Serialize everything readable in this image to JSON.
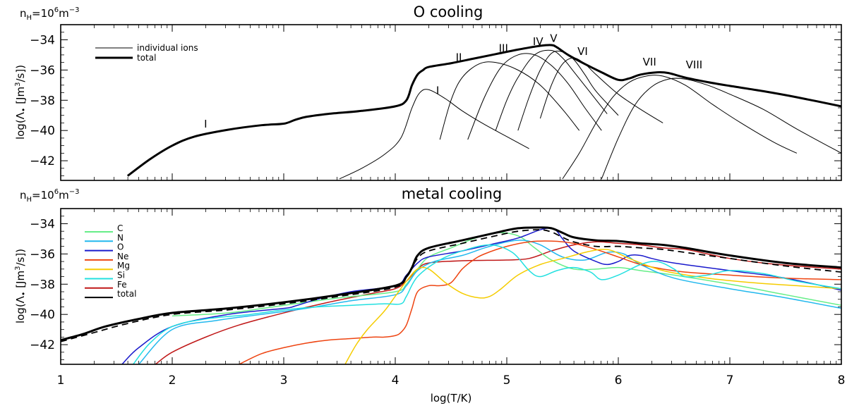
{
  "chart_data": [
    {
      "type": "line",
      "title": "O cooling",
      "density_base": "n",
      "density_sub": "H",
      "density_eq": "=10",
      "density_exp": "6",
      "density_unit": "m",
      "density_unit_exp": "−3",
      "ylabel": {
        "pre": "log(Λ",
        "bullet": "•",
        "mid": " [Jm",
        "exp": "3",
        "post": "/s])"
      },
      "xlim": [
        1,
        8
      ],
      "ylim": [
        -43.3,
        -33.0
      ],
      "yticks": [
        "-34",
        "-36",
        "-38",
        "-40",
        "-42"
      ],
      "legend": [
        {
          "label": "individual ions",
          "weight": "thin"
        },
        {
          "label": "total",
          "weight": "thick"
        }
      ],
      "ion_labels": [
        {
          "text": "I",
          "x": 2.3,
          "y": -39.8
        },
        {
          "text": "I",
          "x": 4.38,
          "y": -37.6
        },
        {
          "text": "II",
          "x": 4.57,
          "y": -35.4
        },
        {
          "text": "III",
          "x": 4.97,
          "y": -34.8
        },
        {
          "text": "IV",
          "x": 5.28,
          "y": -34.35
        },
        {
          "text": "V",
          "x": 5.42,
          "y": -34.15
        },
        {
          "text": "VI",
          "x": 5.68,
          "y": -35.0
        },
        {
          "text": "VII",
          "x": 6.28,
          "y": -35.7
        },
        {
          "text": "VIII",
          "x": 6.68,
          "y": -35.9
        }
      ],
      "series": [
        {
          "name": "total",
          "color": "#000000",
          "width": 3,
          "x": [
            1.6,
            1.8,
            2.0,
            2.2,
            2.5,
            2.8,
            3.0,
            3.1,
            3.2,
            3.4,
            3.7,
            4.0,
            4.1,
            4.15,
            4.2,
            4.25,
            4.3,
            4.5,
            4.7,
            4.9,
            5.1,
            5.3,
            5.4,
            5.45,
            5.55,
            5.7,
            5.85,
            6.0,
            6.1,
            6.2,
            6.35,
            6.45,
            6.6,
            6.8,
            7.0,
            7.3,
            7.6,
            8.0
          ],
          "y": [
            -43.0,
            -41.9,
            -41.0,
            -40.4,
            -39.95,
            -39.65,
            -39.55,
            -39.3,
            -39.1,
            -38.9,
            -38.7,
            -38.4,
            -38.0,
            -37.0,
            -36.3,
            -36.0,
            -35.8,
            -35.55,
            -35.25,
            -34.95,
            -34.65,
            -34.4,
            -34.35,
            -34.5,
            -35.0,
            -35.6,
            -36.15,
            -36.65,
            -36.55,
            -36.3,
            -36.15,
            -36.2,
            -36.5,
            -36.8,
            -37.05,
            -37.4,
            -37.8,
            -38.4
          ]
        },
        {
          "name": "O I",
          "color": "#000000",
          "width": 1,
          "x": [
            3.5,
            3.7,
            3.9,
            4.05,
            4.15,
            4.22,
            4.3,
            4.45,
            4.6,
            4.8,
            5.0,
            5.2
          ],
          "y": [
            -43.2,
            -42.5,
            -41.6,
            -40.5,
            -38.5,
            -37.5,
            -37.3,
            -37.9,
            -38.7,
            -39.6,
            -40.4,
            -41.2
          ]
        },
        {
          "name": "O II",
          "color": "#000000",
          "width": 1,
          "x": [
            4.4,
            4.5,
            4.6,
            4.75,
            4.9,
            5.1,
            5.3,
            5.5,
            5.65
          ],
          "y": [
            -40.6,
            -38.0,
            -36.5,
            -35.6,
            -35.5,
            -36.0,
            -37.0,
            -38.6,
            -40.0
          ]
        },
        {
          "name": "O III",
          "color": "#000000",
          "width": 1,
          "x": [
            4.65,
            4.8,
            4.95,
            5.1,
            5.25,
            5.4,
            5.55,
            5.7,
            5.85
          ],
          "y": [
            -40.6,
            -37.8,
            -35.8,
            -35.0,
            -35.0,
            -35.7,
            -36.9,
            -38.5,
            -40.0
          ]
        },
        {
          "name": "O IV",
          "color": "#000000",
          "width": 1,
          "x": [
            4.9,
            5.0,
            5.1,
            5.25,
            5.4,
            5.5,
            5.6,
            5.75,
            5.9
          ],
          "y": [
            -40.0,
            -38.0,
            -36.5,
            -35.0,
            -34.7,
            -35.2,
            -36.1,
            -37.5,
            -38.9
          ]
        },
        {
          "name": "O V",
          "color": "#000000",
          "width": 1,
          "x": [
            5.1,
            5.2,
            5.3,
            5.4,
            5.5,
            5.6,
            5.7,
            5.8,
            6.0
          ],
          "y": [
            -40.0,
            -37.8,
            -36.0,
            -34.9,
            -34.8,
            -35.3,
            -36.3,
            -37.4,
            -39.0
          ]
        },
        {
          "name": "O VI",
          "color": "#000000",
          "width": 1,
          "x": [
            5.3,
            5.4,
            5.5,
            5.6,
            5.7,
            5.8,
            6.0,
            6.2,
            6.4
          ],
          "y": [
            -39.2,
            -37.0,
            -35.6,
            -35.2,
            -35.6,
            -36.3,
            -37.6,
            -38.6,
            -39.5
          ]
        },
        {
          "name": "O VII",
          "color": "#000000",
          "width": 1,
          "x": [
            5.5,
            5.65,
            5.8,
            5.95,
            6.1,
            6.25,
            6.4,
            6.6,
            6.85,
            7.1,
            7.4,
            7.6
          ],
          "y": [
            -43.2,
            -41.5,
            -39.5,
            -37.8,
            -36.8,
            -36.4,
            -36.4,
            -37.0,
            -38.3,
            -39.5,
            -40.8,
            -41.5
          ]
        },
        {
          "name": "O VIII",
          "color": "#000000",
          "width": 1,
          "x": [
            5.85,
            6.0,
            6.15,
            6.3,
            6.45,
            6.6,
            6.8,
            7.0,
            7.3,
            7.6,
            8.0
          ],
          "y": [
            -43.2,
            -40.5,
            -38.3,
            -37.1,
            -36.6,
            -36.6,
            -37.0,
            -37.6,
            -38.6,
            -39.9,
            -41.5
          ]
        }
      ]
    },
    {
      "type": "line",
      "title": "metal cooling",
      "density_base": "n",
      "density_sub": "H",
      "density_eq": "=10",
      "density_exp": "6",
      "density_unit": "m",
      "density_unit_exp": "−3",
      "ylabel": {
        "pre": "log(Λ",
        "bullet": "•",
        "mid": " [Jm",
        "exp": "3",
        "post": "/s])"
      },
      "xlabel": "log(T/K)",
      "xlim": [
        1,
        8
      ],
      "ylim": [
        -43.3,
        -33.0
      ],
      "xticks": [
        "1",
        "2",
        "3",
        "4",
        "5",
        "6",
        "7",
        "8"
      ],
      "yticks": [
        "-34",
        "-36",
        "-38",
        "-40",
        "-42"
      ],
      "legend": [
        {
          "label": "C",
          "color": "#66ee88"
        },
        {
          "label": "N",
          "color": "#22b8ee"
        },
        {
          "label": "O",
          "color": "#1a1acc"
        },
        {
          "label": "Ne",
          "color": "#ee4411"
        },
        {
          "label": "Mg",
          "color": "#f5cc00"
        },
        {
          "label": "Si",
          "color": "#22e0e0"
        },
        {
          "label": "Fe",
          "color": "#c01818"
        },
        {
          "label": "total",
          "color": "#000000"
        }
      ],
      "series": [
        {
          "name": "Fe",
          "color": "#c01818",
          "width": 1.5,
          "x": [
            1.85,
            2.0,
            2.3,
            2.6,
            3.0,
            3.4,
            3.8,
            4.0,
            4.1,
            4.2,
            4.3,
            4.6,
            5.0,
            5.2,
            5.4,
            5.6,
            5.8,
            6.0,
            6.2,
            6.4,
            6.6,
            6.8,
            7.0,
            7.3,
            7.6,
            8.0
          ],
          "y": [
            -43.3,
            -42.5,
            -41.5,
            -40.7,
            -39.9,
            -39.2,
            -38.6,
            -38.3,
            -37.8,
            -37.0,
            -36.6,
            -36.45,
            -36.4,
            -36.3,
            -35.8,
            -35.4,
            -35.2,
            -35.3,
            -35.4,
            -35.6,
            -35.7,
            -36.0,
            -36.3,
            -36.6,
            -36.8,
            -37.0
          ]
        },
        {
          "name": "C",
          "color": "#66ee88",
          "width": 1.5,
          "x": [
            2.0,
            2.5,
            3.0,
            3.5,
            4.0,
            4.1,
            4.2,
            4.3,
            4.5,
            4.7,
            4.9,
            5.1,
            5.25,
            5.4,
            5.6,
            5.8,
            6.0,
            6.2,
            6.5,
            7.0,
            7.5,
            8.0
          ],
          "y": [
            -40.1,
            -39.9,
            -39.4,
            -38.9,
            -38.5,
            -38.0,
            -37.0,
            -36.2,
            -35.6,
            -35.0,
            -34.6,
            -34.8,
            -35.6,
            -36.4,
            -37.0,
            -37.0,
            -36.9,
            -37.1,
            -37.4,
            -38.0,
            -38.7,
            -39.4
          ]
        },
        {
          "name": "N",
          "color": "#22b8ee",
          "width": 1.5,
          "x": [
            1.7,
            2.0,
            2.4,
            2.8,
            3.2,
            3.6,
            4.0,
            4.1,
            4.2,
            4.35,
            4.6,
            4.8,
            5.0,
            5.15,
            5.3,
            5.5,
            5.7,
            5.9,
            6.05,
            6.2,
            6.5,
            7.0,
            7.5,
            8.0
          ],
          "y": [
            -43.3,
            -41.0,
            -40.4,
            -40.0,
            -39.6,
            -39.1,
            -38.7,
            -38.1,
            -37.1,
            -36.5,
            -36.1,
            -35.6,
            -35.2,
            -35.1,
            -35.4,
            -36.2,
            -36.4,
            -35.9,
            -36.0,
            -36.7,
            -37.6,
            -38.3,
            -38.9,
            -39.6
          ]
        },
        {
          "name": "O",
          "color": "#1a1acc",
          "width": 1.5,
          "x": [
            1.55,
            1.7,
            2.0,
            2.5,
            3.0,
            3.1,
            3.3,
            3.6,
            4.0,
            4.1,
            4.2,
            4.3,
            4.6,
            4.9,
            5.1,
            5.3,
            5.4,
            5.45,
            5.5,
            5.6,
            5.8,
            5.9,
            6.0,
            6.1,
            6.2,
            6.3,
            6.5,
            7.0,
            7.5,
            8.0
          ],
          "y": [
            -43.3,
            -42.2,
            -40.8,
            -40.0,
            -39.6,
            -39.45,
            -39.0,
            -38.5,
            -38.1,
            -37.4,
            -36.6,
            -36.2,
            -35.8,
            -35.3,
            -34.95,
            -34.4,
            -34.3,
            -34.5,
            -35.0,
            -35.8,
            -36.5,
            -36.7,
            -36.5,
            -36.1,
            -36.1,
            -36.3,
            -36.6,
            -37.1,
            -37.6,
            -38.4
          ]
        },
        {
          "name": "Ne",
          "color": "#ee4411",
          "width": 1.5,
          "x": [
            2.6,
            2.8,
            3.0,
            3.2,
            3.4,
            3.6,
            3.8,
            3.9,
            4.0,
            4.05,
            4.1,
            4.15,
            4.2,
            4.3,
            4.4,
            4.5,
            4.6,
            4.7,
            4.8,
            5.0,
            5.2,
            5.4,
            5.6,
            5.8,
            6.0,
            6.2,
            6.4,
            6.6,
            7.0,
            7.5,
            8.0
          ],
          "y": [
            -43.3,
            -42.6,
            -42.2,
            -41.9,
            -41.7,
            -41.6,
            -41.5,
            -41.5,
            -41.4,
            -41.2,
            -40.7,
            -39.6,
            -38.5,
            -38.1,
            -38.1,
            -37.9,
            -37.0,
            -36.4,
            -36.0,
            -35.5,
            -35.2,
            -35.15,
            -35.3,
            -35.7,
            -36.2,
            -36.7,
            -37.0,
            -37.2,
            -37.4,
            -37.6,
            -37.7
          ]
        },
        {
          "name": "Mg",
          "color": "#f5cc00",
          "width": 1.5,
          "x": [
            3.55,
            3.65,
            3.75,
            3.9,
            4.0,
            4.1,
            4.2,
            4.3,
            4.45,
            4.6,
            4.75,
            4.85,
            4.95,
            5.1,
            5.3,
            5.5,
            5.7,
            5.85,
            5.95,
            6.1,
            6.4,
            6.8,
            7.2,
            7.6,
            8.0
          ],
          "y": [
            -43.3,
            -42.0,
            -41.0,
            -39.8,
            -38.8,
            -37.8,
            -37.0,
            -37.0,
            -37.9,
            -38.6,
            -38.9,
            -38.8,
            -38.3,
            -37.4,
            -36.7,
            -36.3,
            -35.9,
            -35.7,
            -35.8,
            -36.3,
            -37.1,
            -37.6,
            -37.9,
            -38.1,
            -38.3
          ]
        },
        {
          "name": "Si",
          "color": "#22e0e0",
          "width": 1.5,
          "x": [
            1.65,
            1.8,
            2.0,
            2.3,
            2.7,
            3.0,
            3.3,
            3.6,
            3.9,
            4.05,
            4.1,
            4.2,
            4.4,
            4.6,
            4.85,
            5.05,
            5.2,
            5.3,
            5.45,
            5.6,
            5.75,
            5.85,
            6.0,
            6.2,
            6.35,
            6.5,
            6.6,
            6.8,
            7.0,
            7.3,
            7.6,
            8.0
          ],
          "y": [
            -43.3,
            -41.9,
            -40.8,
            -40.3,
            -40.0,
            -39.7,
            -39.5,
            -39.4,
            -39.3,
            -39.3,
            -38.8,
            -37.5,
            -36.4,
            -35.8,
            -35.4,
            -35.9,
            -37.1,
            -37.5,
            -37.1,
            -36.9,
            -37.2,
            -37.7,
            -37.4,
            -36.7,
            -36.5,
            -37.0,
            -37.5,
            -37.4,
            -37.1,
            -37.3,
            -37.8,
            -38.3
          ]
        },
        {
          "name": "total (thick)",
          "color": "#000000",
          "width": 3,
          "x": [
            1.0,
            1.2,
            1.4,
            1.7,
            2.0,
            2.5,
            3.0,
            3.5,
            4.0,
            4.1,
            4.15,
            4.2,
            4.3,
            4.6,
            4.9,
            5.1,
            5.3,
            5.4,
            5.5,
            5.6,
            5.8,
            6.0,
            6.2,
            6.4,
            6.6,
            7.0,
            7.5,
            8.0
          ],
          "y": [
            -41.7,
            -41.3,
            -40.8,
            -40.3,
            -39.9,
            -39.6,
            -39.2,
            -38.7,
            -38.1,
            -37.5,
            -36.9,
            -36.1,
            -35.6,
            -35.1,
            -34.6,
            -34.3,
            -34.25,
            -34.3,
            -34.6,
            -34.9,
            -35.1,
            -35.15,
            -35.3,
            -35.4,
            -35.6,
            -36.1,
            -36.6,
            -36.9
          ]
        },
        {
          "name": "total (dashed)",
          "color": "#000000",
          "width": 1.8,
          "dash": "9,6",
          "x": [
            1.0,
            1.3,
            1.6,
            2.0,
            2.5,
            3.0,
            3.5,
            4.0,
            4.1,
            4.2,
            4.3,
            4.6,
            4.9,
            5.1,
            5.3,
            5.4,
            5.5,
            5.6,
            5.8,
            6.0,
            6.2,
            6.4,
            6.6,
            7.0,
            7.5,
            8.0
          ],
          "y": [
            -41.8,
            -41.2,
            -40.6,
            -40.0,
            -39.7,
            -39.3,
            -38.8,
            -38.2,
            -37.5,
            -36.3,
            -35.8,
            -35.3,
            -34.8,
            -34.5,
            -34.4,
            -34.55,
            -34.9,
            -35.2,
            -35.5,
            -35.5,
            -35.6,
            -35.7,
            -35.9,
            -36.3,
            -36.8,
            -37.2
          ]
        }
      ]
    }
  ]
}
